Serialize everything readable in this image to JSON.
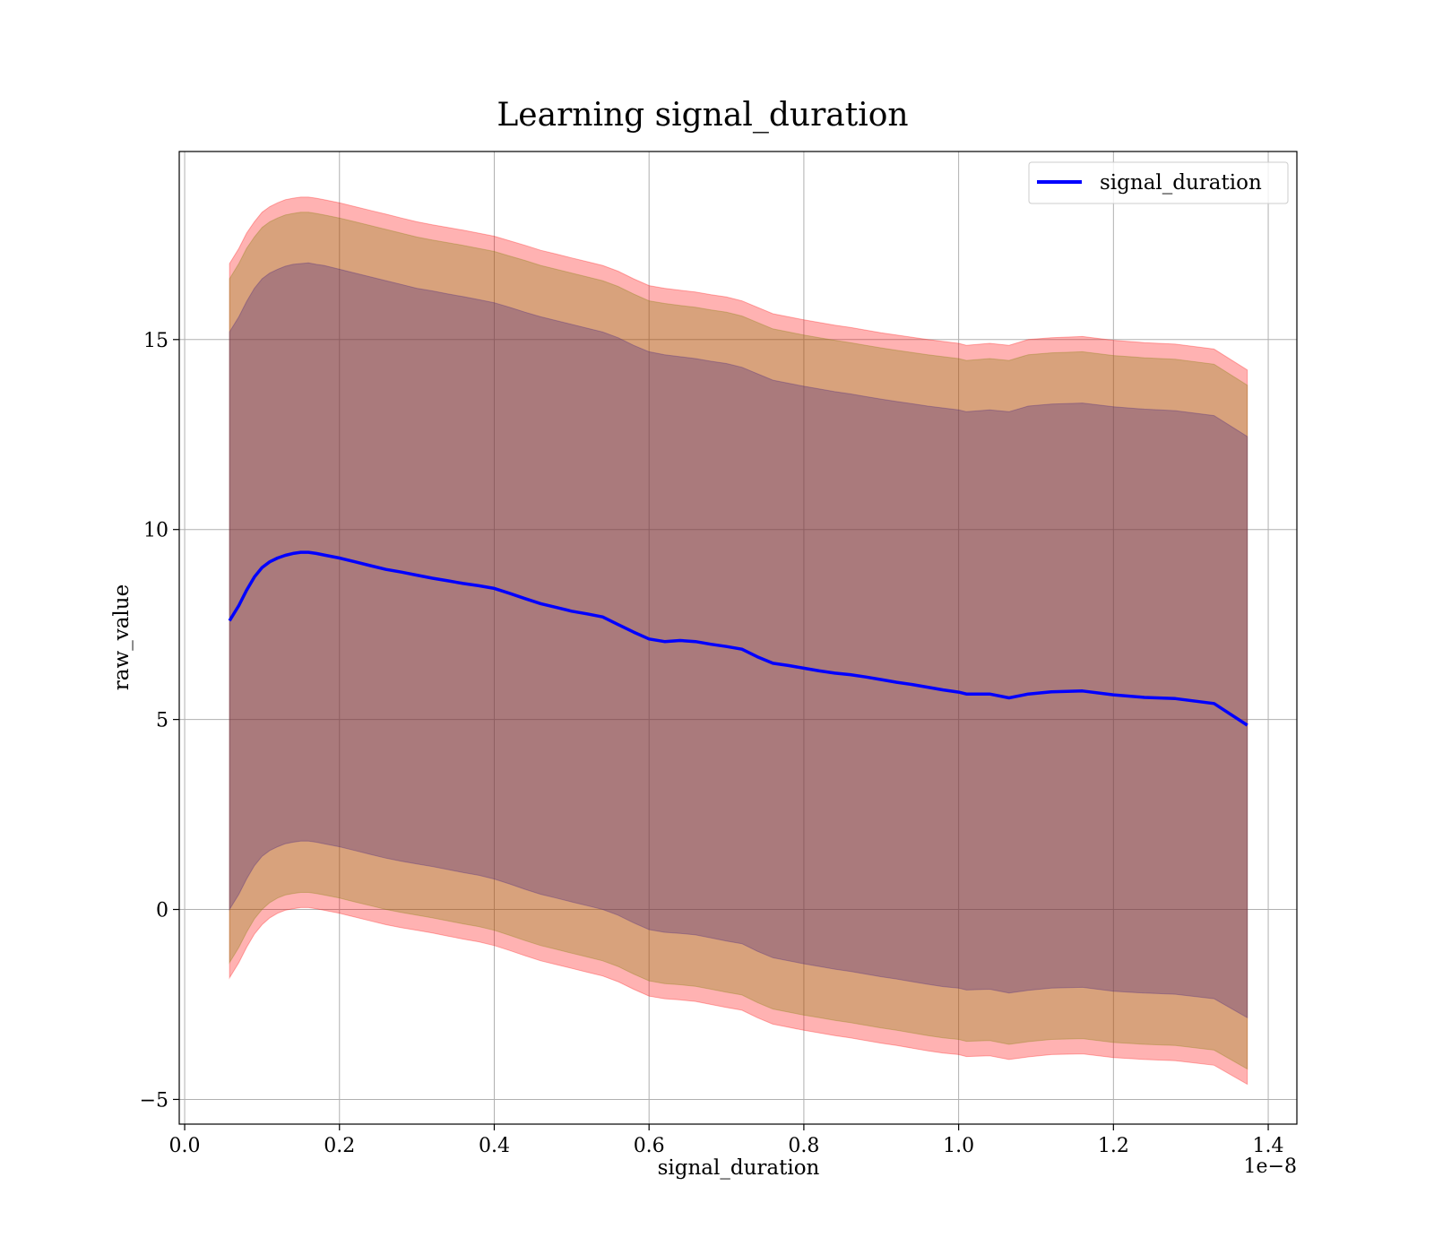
{
  "chart_data": {
    "type": "line",
    "title": "Learning signal_duration",
    "xlabel": "signal_duration",
    "ylabel": "raw_value",
    "x_offset_label": "1e−8",
    "xlim": [
      -0.007,
      1.437
    ],
    "ylim": [
      -5.65,
      19.95
    ],
    "x_ticks": [
      0.0,
      0.2,
      0.4,
      0.6,
      0.8,
      1.0,
      1.2,
      1.4
    ],
    "x_tick_labels": [
      "0.0",
      "0.2",
      "0.4",
      "0.6",
      "0.8",
      "1.0",
      "1.2",
      "1.4"
    ],
    "y_ticks": [
      -5,
      0,
      5,
      10,
      15
    ],
    "y_tick_labels": [
      "−5",
      "0",
      "5",
      "10",
      "15"
    ],
    "grid": true,
    "legend_position": "top-right",
    "series": [
      {
        "name": "signal_duration",
        "color": "#0000ff",
        "x": [
          0.058,
          0.07,
          0.08,
          0.09,
          0.1,
          0.11,
          0.12,
          0.13,
          0.14,
          0.15,
          0.16,
          0.17,
          0.18,
          0.2,
          0.22,
          0.24,
          0.26,
          0.28,
          0.3,
          0.32,
          0.34,
          0.36,
          0.38,
          0.4,
          0.42,
          0.44,
          0.46,
          0.48,
          0.5,
          0.52,
          0.54,
          0.56,
          0.58,
          0.6,
          0.62,
          0.64,
          0.66,
          0.68,
          0.7,
          0.72,
          0.74,
          0.76,
          0.78,
          0.8,
          0.82,
          0.84,
          0.86,
          0.88,
          0.9,
          0.92,
          0.94,
          0.96,
          0.98,
          1.0,
          1.01,
          1.04,
          1.065,
          1.09,
          1.12,
          1.16,
          1.2,
          1.24,
          1.28,
          1.33,
          1.373
        ],
        "values": [
          7.6,
          8.0,
          8.4,
          8.75,
          9.0,
          9.15,
          9.25,
          9.32,
          9.37,
          9.4,
          9.4,
          9.37,
          9.33,
          9.25,
          9.15,
          9.05,
          8.95,
          8.88,
          8.8,
          8.72,
          8.65,
          8.58,
          8.52,
          8.45,
          8.32,
          8.18,
          8.05,
          7.95,
          7.85,
          7.78,
          7.7,
          7.5,
          7.3,
          7.12,
          7.05,
          7.08,
          7.05,
          6.98,
          6.92,
          6.85,
          6.65,
          6.48,
          6.42,
          6.35,
          6.28,
          6.22,
          6.18,
          6.12,
          6.05,
          5.98,
          5.92,
          5.85,
          5.78,
          5.72,
          5.67,
          5.67,
          5.57,
          5.67,
          5.73,
          5.75,
          5.65,
          5.58,
          5.55,
          5.42,
          4.85
        ]
      }
    ],
    "bands": [
      {
        "color": "#ff0000",
        "opacity": 0.3,
        "x": [
          0.058,
          0.07,
          0.08,
          0.09,
          0.1,
          0.11,
          0.12,
          0.13,
          0.14,
          0.15,
          0.16,
          0.17,
          0.18,
          0.2,
          0.22,
          0.24,
          0.26,
          0.28,
          0.3,
          0.32,
          0.34,
          0.36,
          0.38,
          0.4,
          0.42,
          0.44,
          0.46,
          0.48,
          0.5,
          0.52,
          0.54,
          0.56,
          0.58,
          0.6,
          0.62,
          0.64,
          0.66,
          0.68,
          0.7,
          0.72,
          0.74,
          0.76,
          0.78,
          0.8,
          0.82,
          0.84,
          0.86,
          0.88,
          0.9,
          0.92,
          0.94,
          0.96,
          0.98,
          1.0,
          1.01,
          1.04,
          1.065,
          1.09,
          1.12,
          1.16,
          1.2,
          1.24,
          1.28,
          1.33,
          1.373
        ],
        "upper": [
          17.0,
          17.4,
          17.8,
          18.1,
          18.35,
          18.5,
          18.6,
          18.68,
          18.72,
          18.75,
          18.75,
          18.72,
          18.68,
          18.6,
          18.5,
          18.4,
          18.3,
          18.2,
          18.1,
          18.02,
          17.95,
          17.88,
          17.8,
          17.72,
          17.6,
          17.48,
          17.35,
          17.25,
          17.15,
          17.05,
          16.95,
          16.8,
          16.6,
          16.42,
          16.35,
          16.3,
          16.25,
          16.18,
          16.12,
          16.02,
          15.85,
          15.68,
          15.6,
          15.52,
          15.45,
          15.38,
          15.32,
          15.25,
          15.18,
          15.12,
          15.06,
          15.0,
          14.95,
          14.9,
          14.85,
          14.9,
          14.85,
          15.0,
          15.05,
          15.08,
          14.98,
          14.92,
          14.88,
          14.75,
          14.2
        ],
        "lower": [
          -1.8,
          -1.4,
          -1.0,
          -0.65,
          -0.4,
          -0.22,
          -0.1,
          -0.02,
          0.02,
          0.05,
          0.05,
          0.02,
          -0.02,
          -0.1,
          -0.2,
          -0.3,
          -0.4,
          -0.48,
          -0.55,
          -0.62,
          -0.7,
          -0.78,
          -0.85,
          -0.95,
          -1.08,
          -1.22,
          -1.35,
          -1.45,
          -1.55,
          -1.65,
          -1.75,
          -1.9,
          -2.1,
          -2.28,
          -2.35,
          -2.38,
          -2.42,
          -2.5,
          -2.58,
          -2.65,
          -2.85,
          -3.02,
          -3.1,
          -3.18,
          -3.25,
          -3.32,
          -3.38,
          -3.45,
          -3.52,
          -3.58,
          -3.65,
          -3.72,
          -3.78,
          -3.82,
          -3.87,
          -3.85,
          -3.95,
          -3.88,
          -3.82,
          -3.8,
          -3.9,
          -3.95,
          -3.98,
          -4.1,
          -4.6
        ]
      },
      {
        "color": "#7f7f00",
        "opacity": 0.3,
        "x": [
          0.058,
          0.07,
          0.08,
          0.09,
          0.1,
          0.11,
          0.12,
          0.13,
          0.14,
          0.15,
          0.16,
          0.17,
          0.18,
          0.2,
          0.22,
          0.24,
          0.26,
          0.28,
          0.3,
          0.32,
          0.34,
          0.36,
          0.38,
          0.4,
          0.42,
          0.44,
          0.46,
          0.48,
          0.5,
          0.52,
          0.54,
          0.56,
          0.58,
          0.6,
          0.62,
          0.64,
          0.66,
          0.68,
          0.7,
          0.72,
          0.74,
          0.76,
          0.78,
          0.8,
          0.82,
          0.84,
          0.86,
          0.88,
          0.9,
          0.92,
          0.94,
          0.96,
          0.98,
          1.0,
          1.01,
          1.04,
          1.065,
          1.09,
          1.12,
          1.16,
          1.2,
          1.24,
          1.28,
          1.33,
          1.373
        ],
        "upper": [
          16.6,
          17.0,
          17.4,
          17.7,
          17.95,
          18.1,
          18.2,
          18.28,
          18.32,
          18.35,
          18.35,
          18.32,
          18.28,
          18.2,
          18.1,
          18.0,
          17.9,
          17.8,
          17.7,
          17.62,
          17.55,
          17.48,
          17.4,
          17.32,
          17.2,
          17.08,
          16.95,
          16.85,
          16.75,
          16.65,
          16.55,
          16.4,
          16.2,
          16.02,
          15.95,
          15.9,
          15.85,
          15.78,
          15.72,
          15.62,
          15.45,
          15.28,
          15.2,
          15.12,
          15.05,
          14.98,
          14.92,
          14.85,
          14.78,
          14.72,
          14.66,
          14.6,
          14.55,
          14.5,
          14.45,
          14.5,
          14.45,
          14.6,
          14.65,
          14.68,
          14.58,
          14.52,
          14.48,
          14.35,
          13.8
        ],
        "lower": [
          -1.4,
          -1.0,
          -0.6,
          -0.25,
          0.0,
          0.18,
          0.3,
          0.38,
          0.42,
          0.45,
          0.45,
          0.42,
          0.38,
          0.3,
          0.2,
          0.1,
          0.0,
          -0.08,
          -0.15,
          -0.22,
          -0.3,
          -0.38,
          -0.45,
          -0.55,
          -0.68,
          -0.82,
          -0.95,
          -1.05,
          -1.15,
          -1.25,
          -1.35,
          -1.5,
          -1.7,
          -1.88,
          -1.95,
          -1.98,
          -2.02,
          -2.1,
          -2.18,
          -2.25,
          -2.45,
          -2.62,
          -2.7,
          -2.78,
          -2.85,
          -2.92,
          -2.98,
          -3.05,
          -3.12,
          -3.18,
          -3.25,
          -3.32,
          -3.38,
          -3.42,
          -3.47,
          -3.45,
          -3.55,
          -3.48,
          -3.42,
          -3.4,
          -3.5,
          -3.55,
          -3.58,
          -3.7,
          -4.2
        ]
      },
      {
        "color": "#3f1f7f",
        "opacity": 0.3,
        "x": [
          0.058,
          0.07,
          0.08,
          0.09,
          0.1,
          0.11,
          0.12,
          0.13,
          0.14,
          0.15,
          0.16,
          0.17,
          0.18,
          0.2,
          0.22,
          0.24,
          0.26,
          0.28,
          0.3,
          0.32,
          0.34,
          0.36,
          0.38,
          0.4,
          0.42,
          0.44,
          0.46,
          0.48,
          0.5,
          0.52,
          0.54,
          0.56,
          0.58,
          0.6,
          0.62,
          0.64,
          0.66,
          0.68,
          0.7,
          0.72,
          0.74,
          0.76,
          0.78,
          0.8,
          0.82,
          0.84,
          0.86,
          0.88,
          0.9,
          0.92,
          0.94,
          0.96,
          0.98,
          1.0,
          1.01,
          1.04,
          1.065,
          1.09,
          1.12,
          1.16,
          1.2,
          1.24,
          1.28,
          1.33,
          1.373
        ],
        "upper": [
          15.2,
          15.6,
          16.0,
          16.35,
          16.6,
          16.75,
          16.85,
          16.93,
          16.98,
          17.0,
          17.02,
          16.98,
          16.95,
          16.85,
          16.75,
          16.65,
          16.55,
          16.45,
          16.35,
          16.28,
          16.2,
          16.13,
          16.05,
          15.97,
          15.85,
          15.72,
          15.6,
          15.5,
          15.4,
          15.3,
          15.2,
          15.05,
          14.85,
          14.68,
          14.6,
          14.55,
          14.5,
          14.43,
          14.37,
          14.27,
          14.1,
          13.93,
          13.85,
          13.77,
          13.7,
          13.63,
          13.57,
          13.5,
          13.43,
          13.37,
          13.31,
          13.25,
          13.2,
          13.15,
          13.1,
          13.15,
          13.1,
          13.25,
          13.3,
          13.33,
          13.23,
          13.17,
          13.13,
          13.0,
          12.45
        ],
        "lower": [
          0.0,
          0.4,
          0.8,
          1.15,
          1.4,
          1.55,
          1.65,
          1.73,
          1.77,
          1.8,
          1.8,
          1.77,
          1.73,
          1.65,
          1.55,
          1.45,
          1.35,
          1.27,
          1.2,
          1.13,
          1.05,
          0.97,
          0.9,
          0.8,
          0.67,
          0.53,
          0.4,
          0.3,
          0.2,
          0.1,
          0.0,
          -0.15,
          -0.35,
          -0.53,
          -0.6,
          -0.63,
          -0.67,
          -0.75,
          -0.83,
          -0.9,
          -1.1,
          -1.27,
          -1.35,
          -1.43,
          -1.5,
          -1.57,
          -1.63,
          -1.7,
          -1.77,
          -1.83,
          -1.9,
          -1.97,
          -2.03,
          -2.07,
          -2.12,
          -2.1,
          -2.2,
          -2.13,
          -2.07,
          -2.05,
          -2.15,
          -2.2,
          -2.23,
          -2.35,
          -2.85
        ]
      }
    ]
  }
}
